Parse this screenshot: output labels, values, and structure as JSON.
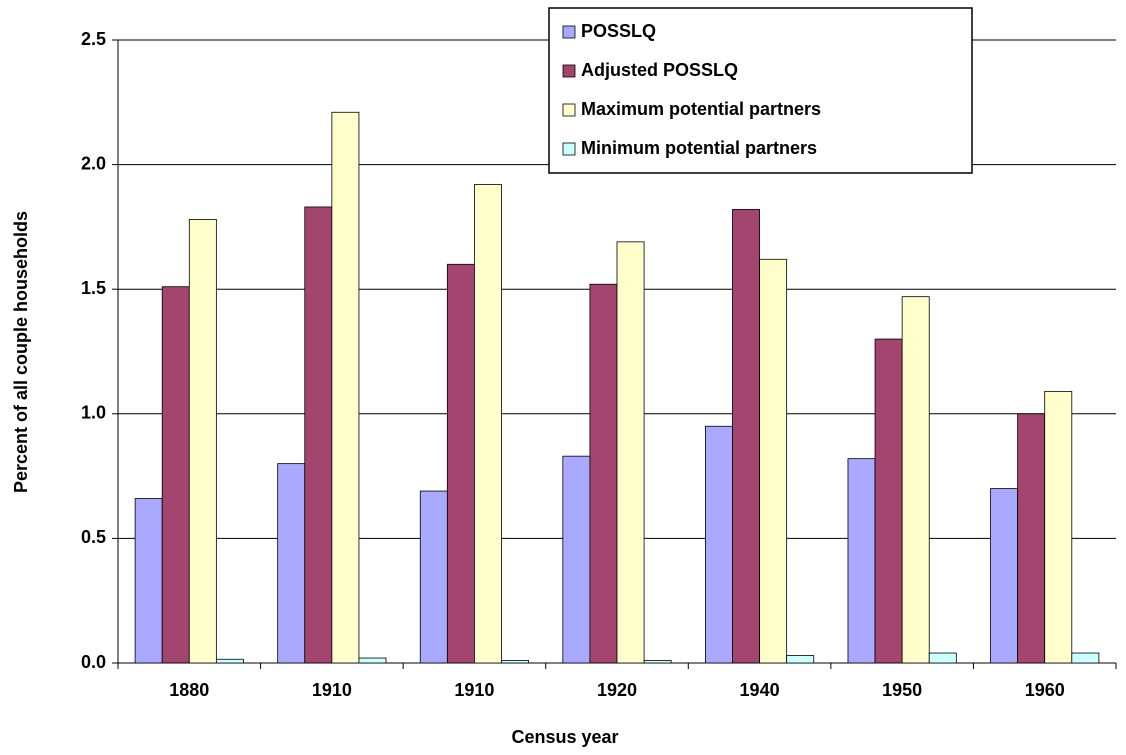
{
  "chart_data": {
    "type": "bar",
    "x_label": "Census year",
    "y_label": "Percent of all couple households",
    "categories": [
      "1880",
      "1910",
      "1910",
      "1920",
      "1940",
      "1950",
      "1960"
    ],
    "series": [
      {
        "name": "POSSLQ",
        "color": "#a9a9ff",
        "values": [
          0.66,
          0.8,
          0.69,
          0.83,
          0.95,
          0.82,
          0.7
        ]
      },
      {
        "name": "Adjusted POSSLQ",
        "color": "#a4456f",
        "values": [
          1.51,
          1.83,
          1.6,
          1.52,
          1.82,
          1.3,
          1.0
        ]
      },
      {
        "name": "Maximum potential partners",
        "color": "#ffffcc",
        "values": [
          1.78,
          2.21,
          1.92,
          1.69,
          1.62,
          1.47,
          1.09
        ]
      },
      {
        "name": "Minimum potential partners",
        "color": "#ccffff",
        "values": [
          0.015,
          0.02,
          0.01,
          0.01,
          0.03,
          0.04,
          0.04
        ]
      }
    ],
    "ylim": [
      0,
      2.5
    ],
    "yticks": [
      {
        "value": 0,
        "label": "0.0"
      },
      0.5,
      {
        "value": 1,
        "label": "1.0"
      },
      1.5,
      {
        "value": 2,
        "label": "2.0"
      },
      2.5
    ],
    "grid": true
  }
}
